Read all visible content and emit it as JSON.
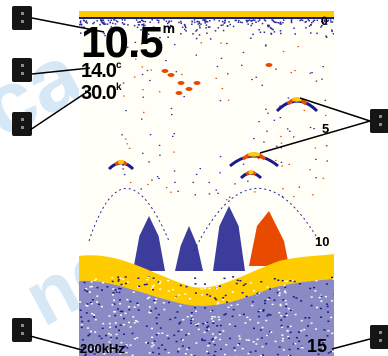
{
  "watermark": {
    "left_text": "ca",
    "right_text": "ngov"
  },
  "display": {
    "depth": {
      "value": "10.5",
      "unit": "m"
    },
    "temperature": {
      "value": "14.0",
      "unit": "c"
    },
    "speed": {
      "value": "30.0",
      "unit": "k"
    },
    "frequency": "200kHz",
    "depth_scale": {
      "top": "0",
      "mid": "5",
      "lower": "10",
      "bottom": "15"
    }
  },
  "colors": {
    "background": "#fffef7",
    "bottom": "#ffcc00",
    "fish_outer": "#1a1a8c",
    "fish_core": "#e84a00",
    "clutter": "#2a2a9a"
  }
}
